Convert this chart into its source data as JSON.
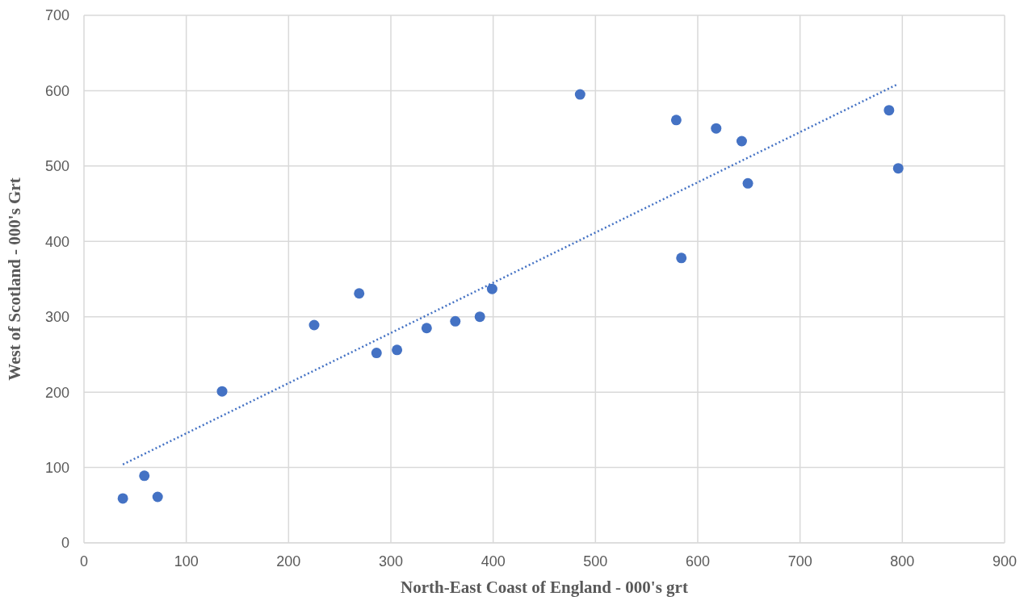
{
  "chart_data": {
    "type": "scatter",
    "xlabel": "North-East Coast of England - 000's grt",
    "ylabel": "West of Scotland - 000's Grt",
    "xlim": [
      0,
      900
    ],
    "xticks": [
      0,
      100,
      200,
      300,
      400,
      500,
      600,
      700,
      800,
      900
    ],
    "ylim": [
      0,
      700
    ],
    "yticks": [
      0,
      100,
      200,
      300,
      400,
      500,
      600,
      700
    ],
    "grid": true,
    "series": [
      {
        "color": "#4472c4",
        "marker": "circle",
        "x": [
          38,
          59,
          72,
          135,
          225,
          269,
          286,
          306,
          335,
          363,
          387,
          399,
          485,
          579,
          584,
          618,
          643,
          649,
          787,
          796
        ],
        "values": [
          59,
          89,
          61,
          201,
          289,
          331,
          252,
          256,
          285,
          294,
          300,
          337,
          595,
          561,
          378,
          550,
          533,
          477,
          574,
          497
        ]
      },
      {
        "type": "line",
        "color": "#4472c4",
        "line_style": "dotted",
        "marker": "none",
        "x": [
          38,
          796
        ],
        "values": [
          104,
          609
        ]
      }
    ]
  }
}
